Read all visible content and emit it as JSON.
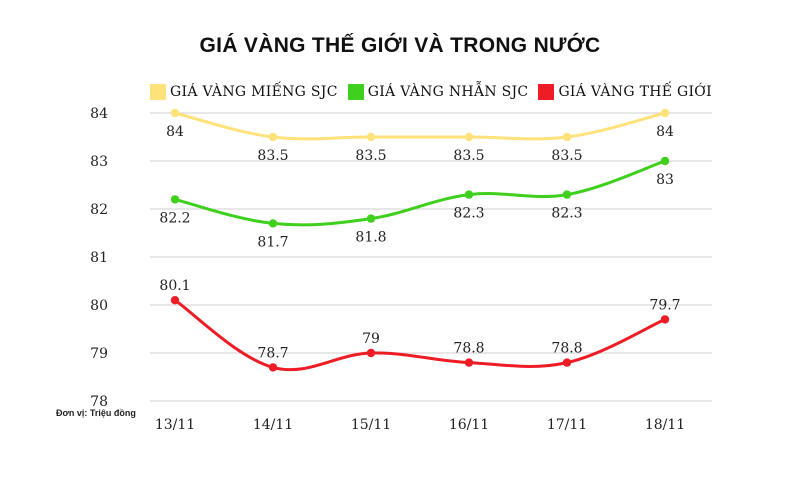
{
  "chart_data": {
    "type": "line",
    "title": "GIÁ VÀNG THẾ GIỚI VÀ TRONG NƯỚC",
    "unit_note": "Đơn vị: Triệu đồng",
    "categories": [
      "13/11",
      "14/11",
      "15/11",
      "16/11",
      "17/11",
      "18/11"
    ],
    "y_ticks": [
      "84",
      "83",
      "82",
      "81",
      "80",
      "79",
      "78"
    ],
    "ylim": [
      78,
      84
    ],
    "grid": true,
    "legend_position": "top",
    "series": [
      {
        "name": "GIÁ VÀNG MIẾNG SJC",
        "color": "#ffe27a",
        "values": [
          84,
          83.5,
          83.5,
          83.5,
          83.5,
          84
        ],
        "labels": [
          "84",
          "83.5",
          "83.5",
          "83.5",
          "83.5",
          "84"
        ],
        "label_side": "below"
      },
      {
        "name": "GIÁ VÀNG NHẪN SJC",
        "color": "#3ed01c",
        "values": [
          82.2,
          81.7,
          81.8,
          82.3,
          82.3,
          83
        ],
        "labels": [
          "82.2",
          "81.7",
          "81.8",
          "82.3",
          "82.3",
          "83"
        ],
        "label_side": "below"
      },
      {
        "name": "GIÁ VÀNG THẾ GIỚI",
        "color": "#ee1c24",
        "values": [
          80.1,
          78.7,
          79,
          78.8,
          78.8,
          79.7
        ],
        "labels": [
          "80.1",
          "78.7",
          "79",
          "78.8",
          "78.8",
          "79.7"
        ],
        "label_side": "above"
      }
    ]
  }
}
